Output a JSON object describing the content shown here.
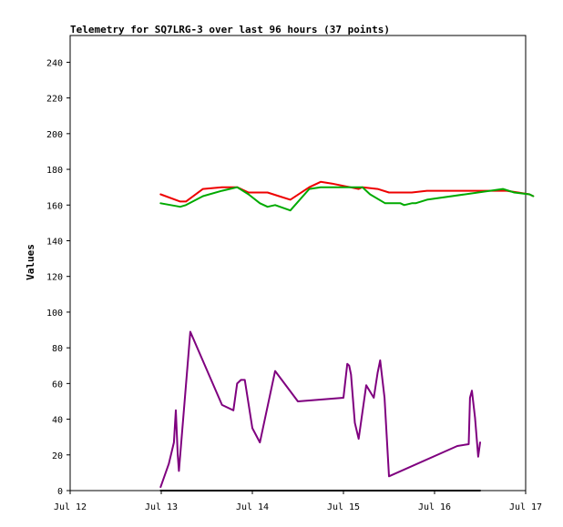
{
  "chart_data": {
    "type": "line",
    "title": "Telemetry for SQ7LRG-3 over last 96 hours (37 points)",
    "xlabel": "",
    "ylabel": "Values",
    "xlim": [
      "Jul 12",
      "Jul 17"
    ],
    "ylim": [
      0,
      255
    ],
    "x_ticks": [
      "Jul 12",
      "Jul 13",
      "Jul 14",
      "Jul 15",
      "Jul 16",
      "Jul 17"
    ],
    "y_ticks": [
      0,
      20,
      40,
      60,
      80,
      100,
      120,
      140,
      160,
      180,
      200,
      220,
      240
    ],
    "grid": false,
    "legend": "none",
    "series": [
      {
        "color": "#ee0000",
        "points": [
          [
            "2024-07-12T23:50",
            166
          ],
          [
            "2024-07-13T05:00",
            162
          ],
          [
            "2024-07-13T06:30",
            162
          ],
          [
            "2024-07-13T11:00",
            169
          ],
          [
            "2024-07-13T16:00",
            170
          ],
          [
            "2024-07-13T20:00",
            170
          ],
          [
            "2024-07-13T23:00",
            167
          ],
          [
            "2024-07-14T02:00",
            167
          ],
          [
            "2024-07-14T04:00",
            167
          ],
          [
            "2024-07-14T07:00",
            165
          ],
          [
            "2024-07-14T10:00",
            163
          ],
          [
            "2024-07-14T15:00",
            170
          ],
          [
            "2024-07-14T18:00",
            173
          ],
          [
            "2024-07-14T21:00",
            172
          ],
          [
            "2024-07-15T04:00",
            169
          ],
          [
            "2024-07-15T05:00",
            170
          ],
          [
            "2024-07-15T09:00",
            169
          ],
          [
            "2024-07-15T12:00",
            167
          ],
          [
            "2024-07-15T18:00",
            167
          ],
          [
            "2024-07-15T22:00",
            168
          ],
          [
            "2024-07-16T11:00",
            168
          ],
          [
            "2024-07-16T14:00",
            168
          ],
          [
            "2024-07-16T19:00",
            168
          ],
          [
            "2024-07-16T22:00",
            167
          ],
          [
            "2024-07-17T01:00",
            166
          ],
          [
            "2024-07-17T02:00",
            165
          ]
        ]
      },
      {
        "color": "#00aa00",
        "points": [
          [
            "2024-07-12T23:50",
            161
          ],
          [
            "2024-07-13T05:00",
            159
          ],
          [
            "2024-07-13T06:30",
            160
          ],
          [
            "2024-07-13T11:00",
            165
          ],
          [
            "2024-07-13T16:00",
            168
          ],
          [
            "2024-07-13T20:00",
            170
          ],
          [
            "2024-07-13T23:00",
            166
          ],
          [
            "2024-07-14T02:00",
            161
          ],
          [
            "2024-07-14T04:00",
            159
          ],
          [
            "2024-07-14T06:00",
            160
          ],
          [
            "2024-07-14T10:00",
            157
          ],
          [
            "2024-07-14T15:00",
            169
          ],
          [
            "2024-07-14T18:00",
            170
          ],
          [
            "2024-07-15T03:00",
            170
          ],
          [
            "2024-07-15T05:00",
            170
          ],
          [
            "2024-07-15T07:00",
            166
          ],
          [
            "2024-07-15T11:00",
            161
          ],
          [
            "2024-07-15T15:00",
            161
          ],
          [
            "2024-07-15T16:00",
            160
          ],
          [
            "2024-07-15T18:00",
            161
          ],
          [
            "2024-07-15T19:00",
            161
          ],
          [
            "2024-07-15T22:00",
            163
          ],
          [
            "2024-07-16T18:00",
            169
          ],
          [
            "2024-07-16T21:00",
            167
          ],
          [
            "2024-07-17T01:00",
            166
          ],
          [
            "2024-07-17T02:00",
            165
          ]
        ]
      },
      {
        "color": "#7f007f",
        "points": [
          [
            "2024-07-12T23:50",
            2
          ],
          [
            "2024-07-13T02:00",
            15
          ],
          [
            "2024-07-13T03:20",
            27
          ],
          [
            "2024-07-13T03:50",
            45
          ],
          [
            "2024-07-13T04:20",
            20
          ],
          [
            "2024-07-13T04:40",
            11
          ],
          [
            "2024-07-13T07:40",
            89
          ],
          [
            "2024-07-13T16:00",
            48
          ],
          [
            "2024-07-13T19:00",
            45
          ],
          [
            "2024-07-13T20:00",
            60
          ],
          [
            "2024-07-13T21:00",
            62
          ],
          [
            "2024-07-13T22:00",
            62
          ],
          [
            "2024-07-14T00:00",
            35
          ],
          [
            "2024-07-14T02:00",
            27
          ],
          [
            "2024-07-14T06:00",
            67
          ],
          [
            "2024-07-14T12:00",
            50
          ],
          [
            "2024-07-15T00:00",
            52
          ],
          [
            "2024-07-15T01:00",
            71
          ],
          [
            "2024-07-15T01:30",
            70
          ],
          [
            "2024-07-15T02:00",
            65
          ],
          [
            "2024-07-15T03:00",
            38
          ],
          [
            "2024-07-15T04:00",
            29
          ],
          [
            "2024-07-15T06:00",
            59
          ],
          [
            "2024-07-15T08:00",
            52
          ],
          [
            "2024-07-15T09:00",
            66
          ],
          [
            "2024-07-15T09:40",
            73
          ],
          [
            "2024-07-15T10:50",
            52
          ],
          [
            "2024-07-15T12:00",
            8
          ],
          [
            "2024-07-16T06:00",
            25
          ],
          [
            "2024-07-16T09:00",
            26
          ],
          [
            "2024-07-16T09:20",
            52
          ],
          [
            "2024-07-16T09:50",
            56
          ],
          [
            "2024-07-16T10:40",
            41
          ],
          [
            "2024-07-16T11:30",
            19
          ],
          [
            "2024-07-16T12:00",
            27
          ]
        ]
      },
      {
        "color": "#000000",
        "points": [
          [
            "2024-07-12T23:50",
            0
          ],
          [
            "2024-07-16T12:00",
            0
          ]
        ]
      }
    ]
  }
}
